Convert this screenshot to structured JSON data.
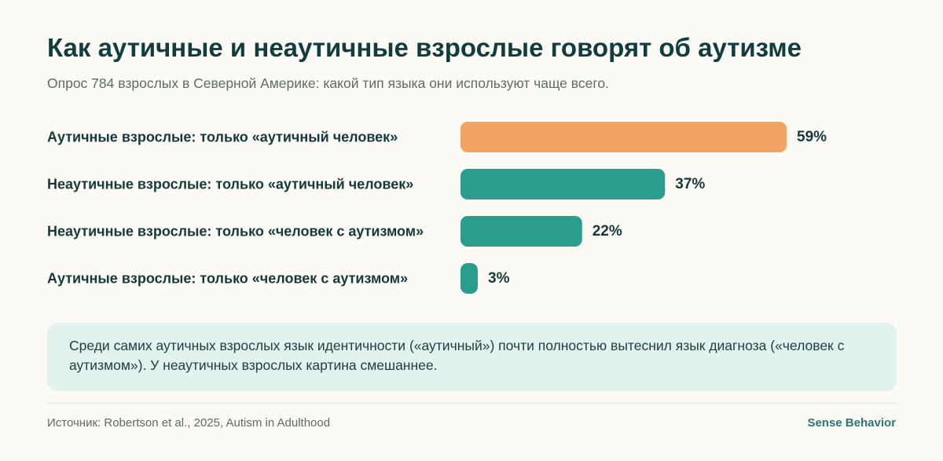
{
  "title": "Как аутичные и неаутичные взрослые говорят об аутизме",
  "subtitle": "Опрос 784 взрослых в Северной Америке: какой тип языка они используют чаще всего.",
  "chart_data": {
    "type": "bar",
    "orientation": "horizontal",
    "categories": [
      "Аутичные взрослые: только «аутичный человек»",
      "Неаутичные взрослые: только «аутичный человек»",
      "Неаутичные взрослые: только «человек с аутизмом»",
      "Аутичные взрослые: только «человек с аутизмом»"
    ],
    "values": [
      59,
      37,
      22,
      3
    ],
    "value_labels": [
      "59%",
      "37%",
      "22%",
      "3%"
    ],
    "unit": "%",
    "bar_colors": [
      "#f2a462",
      "#2a9d8f",
      "#2a9d8f",
      "#2a9d8f"
    ],
    "xlim": [
      0,
      59
    ],
    "grid": false,
    "legend": "none"
  },
  "note": "Среди самих аутичных взрослых язык идентичности («аутичный») почти полностью вытеснил язык диагноза («человек с аутизмом»). У неаутичных взрослых картина смешаннее.",
  "footer": {
    "source": "Источник: Robertson et al., 2025, Autism in Adulthood",
    "brand": "Sense Behavior"
  },
  "colors": {
    "background": "#fbfaf5",
    "title": "#123d3e",
    "accent_orange": "#f2a462",
    "accent_teal": "#2a9d8f",
    "note_background": "#e1f2ef",
    "brand": "#2a7876"
  }
}
